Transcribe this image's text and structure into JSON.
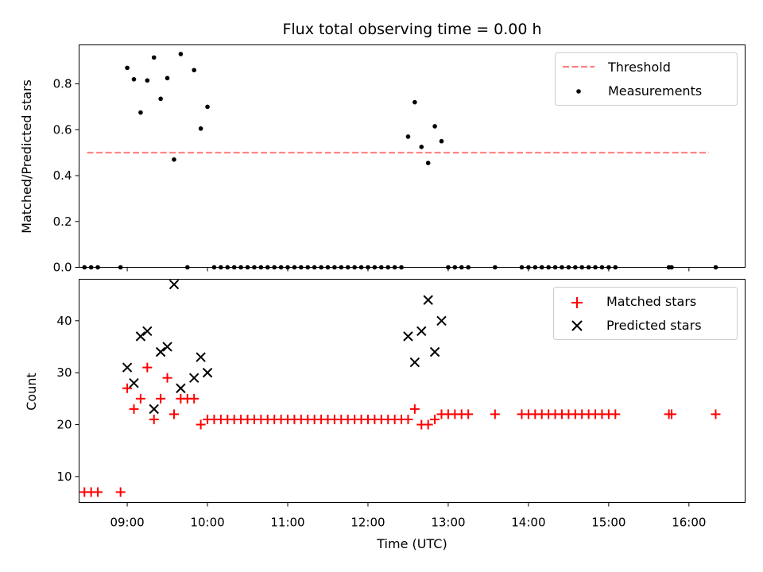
{
  "chart_data": [
    {
      "type": "scatter",
      "title": "Flux total observing time = 0.00 h",
      "xlabel": "",
      "ylabel": "Matched/Predicted stars",
      "x_unit": "hours UTC",
      "xlim": [
        "08:24",
        "16:42"
      ],
      "ylim": [
        0,
        0.97
      ],
      "yticks": [
        0.0,
        0.2,
        0.4,
        0.6,
        0.8
      ],
      "ytick_labels": [
        "0.0",
        "0.2",
        "0.4",
        "0.6",
        "0.8"
      ],
      "xticks": [
        "09:00",
        "10:00",
        "11:00",
        "12:00",
        "13:00",
        "14:00",
        "15:00",
        "16:00"
      ],
      "grid": false,
      "legend": {
        "placement": "top-right",
        "entries": [
          "Threshold",
          "Measurements"
        ]
      },
      "series": [
        {
          "name": "Threshold",
          "style": "dashed-line",
          "color": "#ff7f7f",
          "x": [
            "08:30",
            "16:15"
          ],
          "y": [
            0.5,
            0.5
          ]
        },
        {
          "name": "Measurements",
          "style": "dot",
          "color": "#000000",
          "points": [
            [
              "08:28",
              0
            ],
            [
              "08:33",
              0
            ],
            [
              "08:38",
              0
            ],
            [
              "08:55",
              0
            ],
            [
              "09:00",
              0.87
            ],
            [
              "09:05",
              0.82
            ],
            [
              "09:10",
              0.675
            ],
            [
              "09:15",
              0.815
            ],
            [
              "09:20",
              0.915
            ],
            [
              "09:25",
              0.735
            ],
            [
              "09:30",
              0.825
            ],
            [
              "09:35",
              0.47
            ],
            [
              "09:40",
              0.93
            ],
            [
              "09:45",
              0
            ],
            [
              "09:50",
              0.86
            ],
            [
              "09:55",
              0.605
            ],
            [
              "10:00",
              0.7
            ],
            [
              "10:05",
              0
            ],
            [
              "10:10",
              0
            ],
            [
              "10:15",
              0
            ],
            [
              "10:20",
              0
            ],
            [
              "10:25",
              0
            ],
            [
              "10:30",
              0
            ],
            [
              "10:35",
              0
            ],
            [
              "10:40",
              0
            ],
            [
              "10:45",
              0
            ],
            [
              "10:50",
              0
            ],
            [
              "10:55",
              0
            ],
            [
              "11:00",
              0
            ],
            [
              "11:05",
              0
            ],
            [
              "11:10",
              0
            ],
            [
              "11:15",
              0
            ],
            [
              "11:20",
              0
            ],
            [
              "11:25",
              0
            ],
            [
              "11:30",
              0
            ],
            [
              "11:35",
              0
            ],
            [
              "11:40",
              0
            ],
            [
              "11:45",
              0
            ],
            [
              "11:50",
              0
            ],
            [
              "11:55",
              0
            ],
            [
              "12:00",
              0
            ],
            [
              "12:05",
              0
            ],
            [
              "12:10",
              0
            ],
            [
              "12:15",
              0
            ],
            [
              "12:20",
              0
            ],
            [
              "12:25",
              0
            ],
            [
              "12:30",
              0.57
            ],
            [
              "12:35",
              0.72
            ],
            [
              "12:40",
              0.525
            ],
            [
              "12:45",
              0.455
            ],
            [
              "12:50",
              0.615
            ],
            [
              "12:55",
              0.55
            ],
            [
              "13:00",
              0
            ],
            [
              "13:05",
              0
            ],
            [
              "13:10",
              0
            ],
            [
              "13:15",
              0
            ],
            [
              "13:35",
              0
            ],
            [
              "13:55",
              0
            ],
            [
              "14:00",
              0
            ],
            [
              "14:05",
              0
            ],
            [
              "14:10",
              0
            ],
            [
              "14:15",
              0
            ],
            [
              "14:20",
              0
            ],
            [
              "14:25",
              0
            ],
            [
              "14:30",
              0
            ],
            [
              "14:35",
              0
            ],
            [
              "14:40",
              0
            ],
            [
              "14:45",
              0
            ],
            [
              "14:50",
              0
            ],
            [
              "14:55",
              0
            ],
            [
              "15:00",
              0
            ],
            [
              "15:05",
              0
            ],
            [
              "15:45",
              0
            ],
            [
              "15:47",
              0
            ],
            [
              "16:20",
              0
            ]
          ]
        }
      ]
    },
    {
      "type": "scatter",
      "title": "",
      "xlabel": "Time (UTC)",
      "ylabel": "Count",
      "x_unit": "hours UTC",
      "xlim": [
        "08:24",
        "16:42"
      ],
      "ylim": [
        5,
        48
      ],
      "yticks": [
        10,
        20,
        30,
        40
      ],
      "ytick_labels": [
        "10",
        "20",
        "30",
        "40"
      ],
      "xticks": [
        "09:00",
        "10:00",
        "11:00",
        "12:00",
        "13:00",
        "14:00",
        "15:00",
        "16:00"
      ],
      "xtick_labels": [
        "09:00",
        "10:00",
        "11:00",
        "12:00",
        "13:00",
        "14:00",
        "15:00",
        "16:00"
      ],
      "grid": false,
      "legend": {
        "placement": "top-right",
        "entries": [
          "Matched stars",
          "Predicted stars"
        ]
      },
      "series": [
        {
          "name": "Matched stars",
          "style": "plus",
          "color": "#ff0000",
          "points": [
            [
              "08:28",
              7
            ],
            [
              "08:33",
              7
            ],
            [
              "08:38",
              7
            ],
            [
              "08:55",
              7
            ],
            [
              "09:00",
              27
            ],
            [
              "09:05",
              23
            ],
            [
              "09:10",
              25
            ],
            [
              "09:15",
              31
            ],
            [
              "09:20",
              21
            ],
            [
              "09:25",
              25
            ],
            [
              "09:30",
              29
            ],
            [
              "09:35",
              22
            ],
            [
              "09:40",
              25
            ],
            [
              "09:45",
              25
            ],
            [
              "09:50",
              25
            ],
            [
              "09:55",
              20
            ],
            [
              "10:00",
              21
            ],
            [
              "10:05",
              21
            ],
            [
              "10:10",
              21
            ],
            [
              "10:15",
              21
            ],
            [
              "10:20",
              21
            ],
            [
              "10:25",
              21
            ],
            [
              "10:30",
              21
            ],
            [
              "10:35",
              21
            ],
            [
              "10:40",
              21
            ],
            [
              "10:45",
              21
            ],
            [
              "10:50",
              21
            ],
            [
              "10:55",
              21
            ],
            [
              "11:00",
              21
            ],
            [
              "11:05",
              21
            ],
            [
              "11:10",
              21
            ],
            [
              "11:15",
              21
            ],
            [
              "11:20",
              21
            ],
            [
              "11:25",
              21
            ],
            [
              "11:30",
              21
            ],
            [
              "11:35",
              21
            ],
            [
              "11:40",
              21
            ],
            [
              "11:45",
              21
            ],
            [
              "11:50",
              21
            ],
            [
              "11:55",
              21
            ],
            [
              "12:00",
              21
            ],
            [
              "12:05",
              21
            ],
            [
              "12:10",
              21
            ],
            [
              "12:15",
              21
            ],
            [
              "12:20",
              21
            ],
            [
              "12:25",
              21
            ],
            [
              "12:30",
              21
            ],
            [
              "12:35",
              23
            ],
            [
              "12:40",
              20
            ],
            [
              "12:45",
              20
            ],
            [
              "12:50",
              21
            ],
            [
              "12:55",
              22
            ],
            [
              "13:00",
              22
            ],
            [
              "13:05",
              22
            ],
            [
              "13:10",
              22
            ],
            [
              "13:15",
              22
            ],
            [
              "13:35",
              22
            ],
            [
              "13:55",
              22
            ],
            [
              "14:00",
              22
            ],
            [
              "14:05",
              22
            ],
            [
              "14:10",
              22
            ],
            [
              "14:15",
              22
            ],
            [
              "14:20",
              22
            ],
            [
              "14:25",
              22
            ],
            [
              "14:30",
              22
            ],
            [
              "14:35",
              22
            ],
            [
              "14:40",
              22
            ],
            [
              "14:45",
              22
            ],
            [
              "14:50",
              22
            ],
            [
              "14:55",
              22
            ],
            [
              "15:00",
              22
            ],
            [
              "15:05",
              22
            ],
            [
              "15:45",
              22
            ],
            [
              "15:47",
              22
            ],
            [
              "16:20",
              22
            ]
          ]
        },
        {
          "name": "Predicted stars",
          "style": "x",
          "color": "#000000",
          "points": [
            [
              "09:00",
              31
            ],
            [
              "09:05",
              28
            ],
            [
              "09:10",
              37
            ],
            [
              "09:15",
              38
            ],
            [
              "09:20",
              23
            ],
            [
              "09:25",
              34
            ],
            [
              "09:30",
              35
            ],
            [
              "09:35",
              47
            ],
            [
              "09:40",
              27
            ],
            [
              "09:50",
              29
            ],
            [
              "09:55",
              33
            ],
            [
              "10:00",
              30
            ],
            [
              "12:30",
              37
            ],
            [
              "12:35",
              32
            ],
            [
              "12:40",
              38
            ],
            [
              "12:45",
              44
            ],
            [
              "12:50",
              34
            ],
            [
              "12:55",
              40
            ]
          ]
        }
      ]
    }
  ]
}
